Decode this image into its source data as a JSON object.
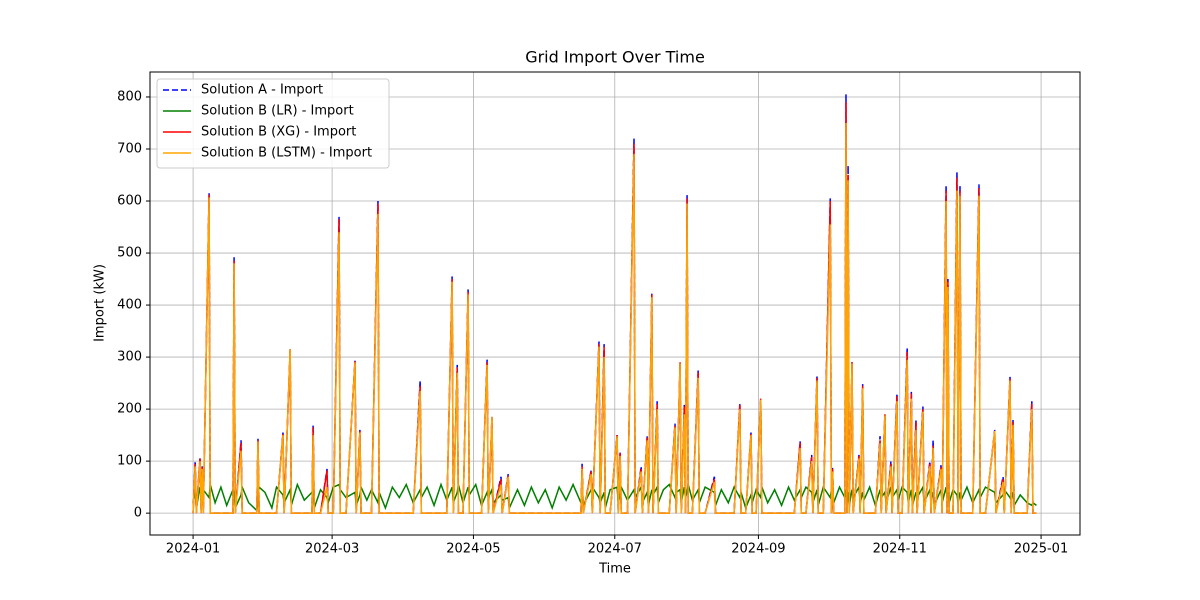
{
  "chart_data": {
    "type": "line",
    "title": "Grid Import Over Time",
    "xlabel": "Time",
    "ylabel": "Import (kW)",
    "x": [
      0,
      0.9,
      1.4,
      3,
      3.5,
      3.9,
      4.4,
      6.9,
      7.4,
      9.5,
      12,
      14.5,
      17.2,
      17.7,
      18.2,
      20.7,
      21.2,
      24,
      27.5,
      28,
      28.5,
      31,
      34,
      36,
      38.8,
      39.3,
      41.9,
      42.4,
      45,
      48,
      51.3,
      51.8,
      52.3,
      55,
      57.8,
      58.3,
      60.5,
      63,
      63.5,
      66,
      69.9,
      70.4,
      72,
      72.5,
      75,
      77,
      79.8,
      80.3,
      83,
      86,
      89,
      92,
      95,
      98,
      98.5,
      101,
      104,
      107,
      109.5,
      111.8,
      112.3,
      114,
      114.5,
      116.5,
      118.7,
      119.2,
      122,
      124.5,
      126.9,
      127.4,
      129,
      129.5,
      132.9,
      133.4,
      136,
      136.5,
      140,
      143,
      146,
      149,
      152,
      155,
      158,
      161,
      164,
      167.4,
      167.9,
      168.4,
      171.8,
      172.3,
      175.2,
      175.7,
      177.4,
      177.9,
      180,
      183,
      183.5,
      184.3,
      184.8,
      187.5,
      190.3,
      190.8,
      193.4,
      193.9,
      196,
      196.5,
      198,
      198.5,
      200.3,
      200.8,
      203,
      205.5,
      208,
      208.5,
      210.2,
      210.7,
      212,
      212.5,
      213.2,
      213.7,
      215.5,
      218,
      218.5,
      221,
      225,
      225.5,
      228,
      231,
      233.5,
      236,
      236.5,
      238.5,
      240.8,
      241.3,
      243,
      245,
      245.5,
      248,
      251,
      254,
      257,
      259.5,
      262,
      262.5,
      264.5,
      267,
      267.5,
      269.3,
      269.8,
      272,
      275,
      275.5,
      276,
      276.5,
      279,
      281.3,
      281.8,
      282.2,
      282.7,
      283.2,
      284.4,
      284.9,
      287.4,
      287.9,
      289,
      289.5,
      292,
      294.5,
      296.5,
      297,
      298.6,
      299.1,
      301.2,
      301.7,
      303.8,
      304.3,
      306,
      308.2,
      308.7,
      310,
      310.5,
      312,
      312.5,
      315,
      315.5,
      318,
      318.5,
      319.4,
      319.9,
      322.8,
      323.3,
      325,
      325.4,
      325.8,
      326.3,
      328,
      329.7,
      330.2,
      331,
      331.5,
      334,
      336.5,
      339.2,
      339.7,
      342,
      346,
      346.5,
      349.6,
      350.1,
      352.6,
      353.1,
      353.9,
      354.4,
      357,
      360,
      362,
      362.5,
      364
    ],
    "series": [
      {
        "name": "Solution A - Import",
        "color": "#0000ff",
        "linestyle": "dashed",
        "values": [
          0,
          100,
          0,
          108,
          0,
          90,
          0,
          615,
          0,
          0,
          0,
          0,
          0,
          492,
          0,
          140,
          0,
          0,
          0,
          143,
          0,
          0,
          0,
          0,
          155,
          0,
          315,
          0,
          0,
          0,
          0,
          170,
          0,
          0,
          85,
          0,
          0,
          570,
          0,
          0,
          293,
          0,
          160,
          0,
          0,
          0,
          600,
          0,
          0,
          0,
          0,
          0,
          0,
          255,
          0,
          0,
          0,
          0,
          0,
          455,
          0,
          285,
          0,
          0,
          430,
          0,
          0,
          0,
          295,
          0,
          185,
          0,
          70,
          0,
          75,
          0,
          0,
          0,
          0,
          0,
          0,
          0,
          0,
          0,
          0,
          0,
          95,
          0,
          82,
          0,
          330,
          0,
          325,
          0,
          0,
          150,
          0,
          118,
          0,
          0,
          720,
          0,
          90,
          0,
          148,
          0,
          422,
          0,
          215,
          0,
          0,
          0,
          172,
          0,
          290,
          0,
          208,
          0,
          612,
          0,
          0,
          275,
          0,
          0,
          70,
          0,
          0,
          0,
          0,
          212,
          0,
          0,
          155,
          0,
          0,
          220,
          0,
          0,
          0,
          0,
          0,
          0,
          138,
          0,
          0,
          112,
          0,
          265,
          0,
          0,
          605,
          0,
          88,
          0,
          0,
          0,
          805,
          0,
          668,
          0,
          290,
          0,
          112,
          0,
          248,
          0,
          0,
          0,
          148,
          0,
          190,
          0,
          100,
          0,
          230,
          0,
          0,
          318,
          0,
          235,
          0,
          180,
          0,
          205,
          0,
          100,
          0,
          140,
          0,
          92,
          0,
          630,
          0,
          450,
          0,
          0,
          655,
          0,
          630,
          0,
          0,
          0,
          632,
          0,
          0,
          160,
          0,
          70,
          0,
          262,
          0,
          180,
          0,
          0,
          0,
          215,
          0,
          0
        ]
      },
      {
        "name": "Solution B (LR) - Import",
        "color": "#008000",
        "linestyle": "solid",
        "values": [
          20,
          40,
          10,
          50,
          30,
          20,
          45,
          30,
          55,
          20,
          50,
          15,
          45,
          40,
          10,
          35,
          50,
          20,
          5,
          30,
          50,
          40,
          10,
          50,
          35,
          20,
          45,
          15,
          55,
          25,
          40,
          50,
          10,
          45,
          30,
          20,
          50,
          55,
          45,
          30,
          40,
          15,
          35,
          50,
          25,
          45,
          20,
          40,
          10,
          50,
          30,
          55,
          20,
          45,
          30,
          50,
          15,
          55,
          25,
          50,
          20,
          40,
          55,
          20,
          50,
          35,
          55,
          15,
          40,
          30,
          45,
          20,
          35,
          25,
          30,
          10,
          45,
          15,
          50,
          20,
          45,
          10,
          50,
          25,
          55,
          20,
          40,
          15,
          45,
          50,
          30,
          20,
          40,
          10,
          45,
          50,
          20,
          35,
          50,
          25,
          45,
          30,
          50,
          20,
          40,
          15,
          45,
          35,
          50,
          20,
          45,
          55,
          30,
          40,
          45,
          20,
          50,
          30,
          40,
          55,
          25,
          45,
          20,
          50,
          40,
          15,
          45,
          20,
          50,
          30,
          40,
          10,
          35,
          20,
          45,
          30,
          50,
          20,
          45,
          15,
          50,
          25,
          45,
          30,
          50,
          40,
          20,
          45,
          15,
          50,
          30,
          45,
          35,
          20,
          50,
          30,
          45,
          20,
          40,
          15,
          45,
          30,
          50,
          20,
          40,
          25,
          50,
          15,
          45,
          30,
          40,
          20,
          50,
          30,
          45,
          25,
          50,
          40,
          20,
          45,
          15,
          40,
          30,
          50,
          20,
          45,
          25,
          40,
          15,
          45,
          20,
          50,
          30,
          40,
          20,
          45,
          35,
          20,
          40,
          25,
          50,
          20,
          45,
          30,
          50,
          40,
          20,
          35,
          45,
          30,
          25,
          40,
          15,
          35,
          20,
          15,
          20,
          15
        ]
      },
      {
        "name": "Solution B (XG) - Import",
        "color": "#ff0000",
        "linestyle": "solid",
        "values": [
          0,
          95,
          0,
          105,
          0,
          88,
          0,
          612,
          0,
          0,
          0,
          0,
          0,
          485,
          0,
          135,
          0,
          0,
          0,
          140,
          0,
          0,
          0,
          0,
          152,
          0,
          315,
          0,
          0,
          0,
          0,
          165,
          0,
          0,
          82,
          0,
          0,
          565,
          0,
          0,
          292,
          0,
          158,
          0,
          0,
          0,
          595,
          0,
          0,
          0,
          0,
          0,
          0,
          245,
          0,
          0,
          0,
          0,
          0,
          450,
          0,
          280,
          0,
          0,
          425,
          0,
          0,
          0,
          290,
          0,
          180,
          0,
          65,
          0,
          72,
          0,
          0,
          0,
          0,
          0,
          0,
          0,
          0,
          0,
          0,
          0,
          90,
          0,
          80,
          0,
          325,
          0,
          320,
          0,
          0,
          150,
          0,
          115,
          0,
          0,
          710,
          0,
          85,
          0,
          145,
          0,
          420,
          0,
          210,
          0,
          0,
          0,
          168,
          0,
          290,
          0,
          205,
          0,
          605,
          0,
          0,
          270,
          0,
          0,
          65,
          0,
          0,
          0,
          0,
          208,
          0,
          0,
          152,
          0,
          0,
          220,
          0,
          0,
          0,
          0,
          0,
          0,
          135,
          0,
          0,
          108,
          0,
          260,
          0,
          0,
          600,
          0,
          85,
          0,
          0,
          0,
          790,
          0,
          650,
          0,
          290,
          0,
          110,
          0,
          245,
          0,
          0,
          0,
          140,
          0,
          190,
          0,
          95,
          0,
          225,
          0,
          0,
          310,
          0,
          230,
          0,
          175,
          0,
          200,
          0,
          95,
          0,
          130,
          0,
          88,
          0,
          620,
          0,
          445,
          0,
          0,
          645,
          0,
          620,
          0,
          0,
          0,
          625,
          0,
          0,
          158,
          0,
          65,
          0,
          258,
          0,
          175,
          0,
          0,
          0,
          210,
          0,
          0
        ]
      },
      {
        "name": "Solution B (LSTM) - Import",
        "color": "#ffa500",
        "linestyle": "solid",
        "values": [
          0,
          90,
          0,
          100,
          0,
          85,
          0,
          607,
          0,
          0,
          0,
          0,
          0,
          480,
          0,
          120,
          0,
          0,
          0,
          138,
          0,
          0,
          0,
          0,
          150,
          0,
          315,
          0,
          0,
          0,
          0,
          150,
          0,
          0,
          50,
          0,
          0,
          540,
          0,
          0,
          290,
          0,
          155,
          0,
          0,
          0,
          575,
          0,
          0,
          0,
          0,
          0,
          0,
          235,
          0,
          0,
          0,
          0,
          0,
          445,
          0,
          270,
          0,
          0,
          420,
          0,
          0,
          0,
          285,
          0,
          185,
          0,
          55,
          0,
          70,
          0,
          0,
          0,
          0,
          0,
          0,
          0,
          0,
          0,
          0,
          0,
          85,
          0,
          75,
          0,
          320,
          0,
          300,
          0,
          0,
          148,
          0,
          110,
          0,
          0,
          690,
          0,
          80,
          0,
          140,
          0,
          415,
          0,
          200,
          0,
          0,
          0,
          165,
          0,
          288,
          0,
          190,
          0,
          595,
          0,
          0,
          260,
          0,
          0,
          60,
          0,
          0,
          0,
          0,
          200,
          0,
          0,
          150,
          0,
          0,
          218,
          0,
          0,
          0,
          0,
          0,
          0,
          125,
          0,
          0,
          100,
          0,
          255,
          0,
          0,
          555,
          0,
          80,
          0,
          0,
          0,
          750,
          0,
          640,
          0,
          288,
          0,
          105,
          0,
          240,
          0,
          0,
          0,
          135,
          0,
          188,
          0,
          90,
          0,
          215,
          0,
          0,
          295,
          0,
          220,
          0,
          160,
          0,
          195,
          0,
          90,
          0,
          125,
          0,
          85,
          0,
          600,
          0,
          435,
          0,
          0,
          620,
          0,
          610,
          0,
          0,
          0,
          610,
          0,
          0,
          158,
          0,
          60,
          0,
          255,
          0,
          170,
          0,
          0,
          0,
          200,
          0,
          0
        ]
      }
    ],
    "xlim": [
      -18.6,
      382.8
    ],
    "xticks": [
      {
        "value": 0,
        "label": "2024-01"
      },
      {
        "value": 60,
        "label": "2024-03"
      },
      {
        "value": 121,
        "label": "2024-05"
      },
      {
        "value": 182,
        "label": "2024-07"
      },
      {
        "value": 244,
        "label": "2024-09"
      },
      {
        "value": 305,
        "label": "2024-11"
      },
      {
        "value": 366,
        "label": "2025-01"
      }
    ],
    "ylim": [
      -42,
      848
    ],
    "yticks": [
      0,
      100,
      200,
      300,
      400,
      500,
      600,
      700,
      800
    ],
    "grid": true,
    "legend": "upper left"
  }
}
